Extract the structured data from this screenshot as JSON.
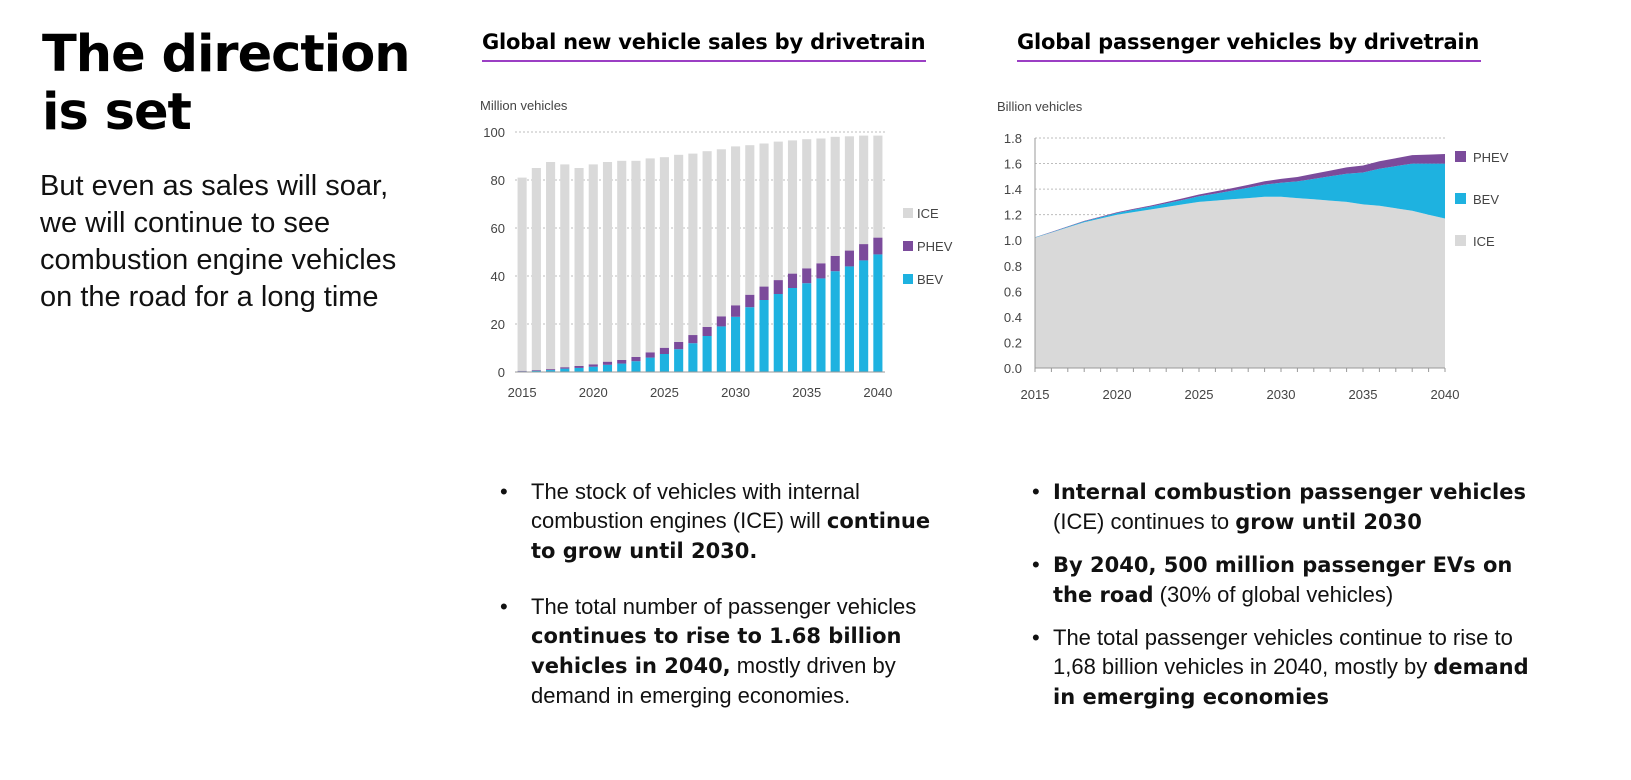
{
  "headline": {
    "line1": "The direction",
    "line2": "is set"
  },
  "lede": "But even as sales will soar, we will continue to see combustion engine vehicles on the road for a long time",
  "colors": {
    "ice": "#d9d9d9",
    "phev": "#7b4b9b",
    "bev": "#1eb2e0",
    "accent_rule": "#9b3fc4"
  },
  "chart_data": [
    {
      "type": "bar",
      "title": "Global new vehicle sales by drivetrain",
      "ylabel": "Million vehicles",
      "xlabel": "",
      "stacked": true,
      "grid": true,
      "legend": "right",
      "ylim": [
        0,
        100
      ],
      "yticks": [
        "0",
        "20",
        "40",
        "60",
        "80",
        "100"
      ],
      "xticks": [
        "2015",
        "2020",
        "2025",
        "2030",
        "2035",
        "2040"
      ],
      "categories": [
        2015,
        2016,
        2017,
        2018,
        2019,
        2020,
        2021,
        2022,
        2023,
        2024,
        2025,
        2026,
        2027,
        2028,
        2029,
        2030,
        2031,
        2032,
        2033,
        2034,
        2035,
        2036,
        2037,
        2038,
        2039,
        2040
      ],
      "series": [
        {
          "name": "BEV",
          "color": "#1eb2e0",
          "values": [
            0.3,
            0.5,
            0.8,
            1.4,
            1.7,
            2.2,
            3,
            3.5,
            4.5,
            6,
            7.5,
            9.5,
            12,
            15,
            19,
            23,
            27,
            30,
            32.5,
            35,
            37,
            39,
            42,
            44,
            46.5,
            49
          ]
        },
        {
          "name": "PHEV",
          "color": "#7b4b9b",
          "values": [
            0.2,
            0.3,
            0.4,
            0.6,
            0.8,
            1,
            1.3,
            1.5,
            1.8,
            2.2,
            2.6,
            3,
            3.4,
            3.8,
            4.2,
            4.8,
            5.2,
            5.6,
            5.8,
            6,
            6.2,
            6.3,
            6.4,
            6.6,
            6.8,
            7
          ]
        },
        {
          "name": "ICE",
          "color": "#d9d9d9",
          "values": [
            80.5,
            84.2,
            86.3,
            84.5,
            82.5,
            83.3,
            83.2,
            83,
            81.7,
            80.8,
            79.4,
            78,
            75.6,
            73.2,
            69.6,
            66.2,
            62.3,
            59.6,
            57.7,
            55.5,
            53.8,
            52,
            49.6,
            47.6,
            45.2,
            42.5
          ]
        }
      ],
      "legend_order": [
        "ICE",
        "PHEV",
        "BEV"
      ]
    },
    {
      "type": "area",
      "title": "Global passenger vehicles by drivetrain",
      "ylabel": "Billion vehicles",
      "xlabel": "",
      "stacked": true,
      "grid": true,
      "legend": "right",
      "ylim": [
        0,
        1.8
      ],
      "yticks": [
        "0.0",
        "0.2",
        "0.4",
        "0.6",
        "0.8",
        "1.0",
        "1.2",
        "1.4",
        "1.6",
        "1.8"
      ],
      "xticks": [
        "2015",
        "2020",
        "2025",
        "2030",
        "2035",
        "2040"
      ],
      "x": [
        2015,
        2016,
        2017,
        2018,
        2019,
        2020,
        2021,
        2022,
        2023,
        2024,
        2025,
        2026,
        2027,
        2028,
        2029,
        2030,
        2031,
        2032,
        2033,
        2034,
        2035,
        2036,
        2037,
        2038,
        2039,
        2040
      ],
      "series": [
        {
          "name": "ICE",
          "color": "#d9d9d9",
          "values": [
            1.02,
            1.06,
            1.1,
            1.14,
            1.17,
            1.2,
            1.22,
            1.24,
            1.26,
            1.28,
            1.3,
            1.31,
            1.32,
            1.33,
            1.34,
            1.34,
            1.33,
            1.32,
            1.31,
            1.3,
            1.28,
            1.27,
            1.25,
            1.23,
            1.2,
            1.17
          ]
        },
        {
          "name": "BEV",
          "color": "#1eb2e0",
          "values": [
            0.002,
            0.003,
            0.005,
            0.007,
            0.01,
            0.013,
            0.018,
            0.022,
            0.028,
            0.035,
            0.044,
            0.055,
            0.067,
            0.08,
            0.095,
            0.11,
            0.13,
            0.16,
            0.19,
            0.22,
            0.25,
            0.29,
            0.33,
            0.37,
            0.4,
            0.43
          ]
        },
        {
          "name": "PHEV",
          "color": "#7b4b9b",
          "values": [
            0.001,
            0.002,
            0.003,
            0.004,
            0.005,
            0.006,
            0.007,
            0.008,
            0.01,
            0.012,
            0.014,
            0.017,
            0.02,
            0.023,
            0.026,
            0.03,
            0.035,
            0.04,
            0.045,
            0.05,
            0.055,
            0.058,
            0.062,
            0.066,
            0.07,
            0.075
          ]
        }
      ],
      "legend_order": [
        "PHEV",
        "BEV",
        "ICE"
      ]
    }
  ],
  "bullets_left": [
    {
      "a": "The stock of vehicles with internal combustion engines (ICE) will ",
      "b": "continue to grow until 2030.",
      "c": ""
    },
    {
      "a": "The total number of passenger vehicles  ",
      "b": "continues to rise to 1.68 billion vehicles in 2040,",
      "c": " mostly driven by demand in emerging economies."
    }
  ],
  "bullets_right": [
    {
      "b1": "Internal combustion passenger vehicles",
      "a": " (ICE) continues to ",
      "b2": "grow until 2030",
      "c": ""
    },
    {
      "b1": "By 2040, 500 million passenger EVs on the road",
      "a": " (30% of global vehicles)",
      "b2": "",
      "c": ""
    },
    {
      "b1": "",
      "a": "The total passenger vehicles continue to rise to 1,68 billion vehicles in 2040, mostly by ",
      "b2": "demand in emerging economies",
      "c": ""
    }
  ]
}
